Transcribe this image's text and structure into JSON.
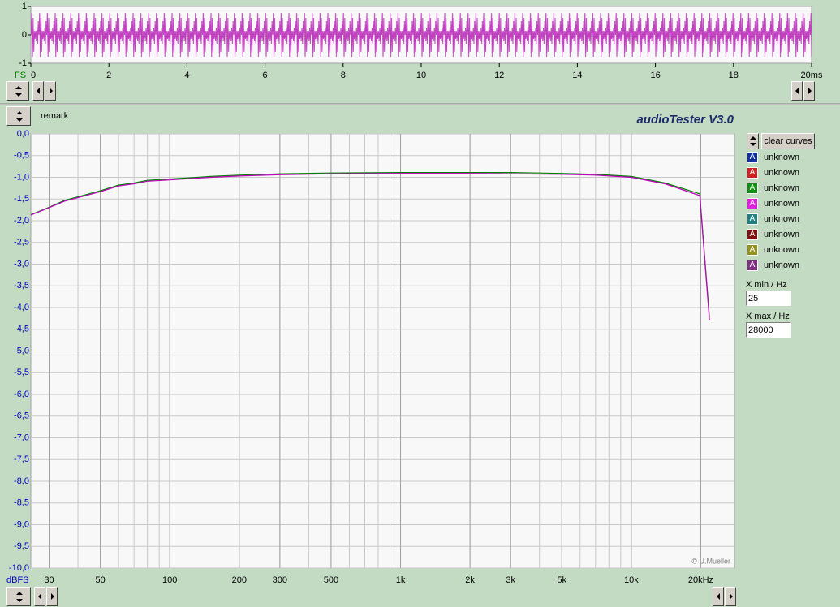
{
  "waveform": {
    "axis_label": "FS",
    "xlim": [
      0,
      20
    ],
    "ylim": [
      -1,
      1
    ],
    "yticks": [
      1,
      0,
      -1
    ],
    "xticks": [
      0,
      2,
      4,
      6,
      8,
      10,
      12,
      14,
      16,
      18,
      {
        "value": 20,
        "label": "20ms"
      }
    ]
  },
  "header": {
    "remark": "remark",
    "title": "audioTester  V3.0"
  },
  "chart_data": {
    "type": "line",
    "log_x": true,
    "grid": true,
    "y_axis_label": "dBFS",
    "credit": "© U.Mueller",
    "xlim": [
      25,
      28000
    ],
    "ylim": [
      -10,
      0
    ],
    "xticks": [
      30,
      50,
      100,
      200,
      300,
      500,
      {
        "value": 1000,
        "label": "1k"
      },
      {
        "value": 2000,
        "label": "2k"
      },
      {
        "value": 3000,
        "label": "3k"
      },
      {
        "value": 5000,
        "label": "5k"
      },
      {
        "value": 10000,
        "label": "10k"
      },
      {
        "value": 20000,
        "label": "20kHz"
      }
    ],
    "yticks": [
      {
        "value": 0,
        "label": "0,0"
      },
      {
        "value": -0.5,
        "label": "-0,5"
      },
      {
        "value": -1,
        "label": "-1,0"
      },
      {
        "value": -1.5,
        "label": "-1,5"
      },
      {
        "value": -2,
        "label": "-2,0"
      },
      {
        "value": -2.5,
        "label": "-2,5"
      },
      {
        "value": -3,
        "label": "-3,0"
      },
      {
        "value": -3.5,
        "label": "-3,5"
      },
      {
        "value": -4,
        "label": "-4,0"
      },
      {
        "value": -4.5,
        "label": "-4,5"
      },
      {
        "value": -5,
        "label": "-5,0"
      },
      {
        "value": -5.5,
        "label": "-5,5"
      },
      {
        "value": -6,
        "label": "-6,0"
      },
      {
        "value": -6.5,
        "label": "-6,5"
      },
      {
        "value": -7,
        "label": "-7,0"
      },
      {
        "value": -7.5,
        "label": "-7,5"
      },
      {
        "value": -8,
        "label": "-8,0"
      },
      {
        "value": -8.5,
        "label": "-8,5"
      },
      {
        "value": -9,
        "label": "-9,0"
      },
      {
        "value": -9.5,
        "label": "-9,5"
      },
      {
        "value": -10,
        "label": "-10,0"
      }
    ],
    "x": [
      25,
      30,
      35,
      40,
      50,
      60,
      70,
      80,
      100,
      150,
      200,
      300,
      500,
      1000,
      2000,
      3000,
      5000,
      7000,
      10000,
      14000,
      19800,
      21800
    ],
    "series": [
      {
        "color": "#008000",
        "values": [
          -1.86,
          -1.69,
          -1.53,
          -1.45,
          -1.31,
          -1.18,
          -1.13,
          -1.07,
          -1.04,
          -0.98,
          -0.95,
          -0.92,
          -0.9,
          -0.89,
          -0.89,
          -0.89,
          -0.91,
          -0.93,
          -0.98,
          -1.13,
          -1.38,
          -4.22
        ]
      },
      {
        "color": "#c000c0",
        "values": [
          -1.87,
          -1.7,
          -1.55,
          -1.47,
          -1.33,
          -1.2,
          -1.15,
          -1.09,
          -1.06,
          -1,
          -0.97,
          -0.94,
          -0.92,
          -0.91,
          -0.91,
          -0.92,
          -0.93,
          -0.95,
          -1,
          -1.15,
          -1.42,
          -4.28
        ]
      }
    ]
  },
  "side_panel": {
    "clear_button": "clear curves",
    "legend": [
      {
        "label": "unknown",
        "color": "#1030a0"
      },
      {
        "label": "unknown",
        "color": "#d02020"
      },
      {
        "label": "unknown",
        "color": "#109010"
      },
      {
        "label": "unknown",
        "color": "#e020e0"
      },
      {
        "label": "unknown",
        "color": "#208080"
      },
      {
        "label": "unknown",
        "color": "#801010"
      },
      {
        "label": "unknown",
        "color": "#909020"
      },
      {
        "label": "unknown",
        "color": "#803080"
      }
    ],
    "xmin_label": "X min / Hz",
    "xmax_label": "X max / Hz"
  }
}
